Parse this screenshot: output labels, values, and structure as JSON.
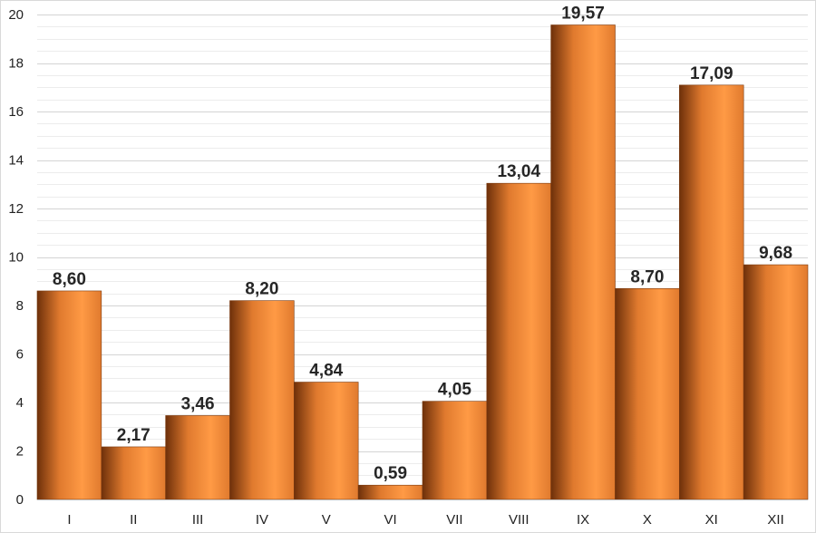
{
  "chart_data": {
    "type": "bar",
    "categories": [
      "I",
      "II",
      "III",
      "IV",
      "V",
      "VI",
      "VII",
      "VIII",
      "IX",
      "X",
      "XI",
      "XII"
    ],
    "values": [
      8.6,
      2.17,
      3.46,
      8.2,
      4.84,
      0.59,
      4.05,
      13.04,
      19.57,
      8.7,
      17.09,
      9.68
    ],
    "value_labels": [
      "8,60",
      "2,17",
      "3,46",
      "8,20",
      "4,84",
      "0,59",
      "4,05",
      "13,04",
      "19,57",
      "8,70",
      "17,09",
      "9,68"
    ],
    "yticks": [
      "0",
      "2",
      "4",
      "6",
      "8",
      "10",
      "12",
      "14",
      "16",
      "18",
      "20"
    ],
    "ylim": [
      0,
      20
    ],
    "major_step": 2,
    "minor_step": 0.5,
    "grid": true,
    "legend": "none",
    "colors": {
      "bar_dark": "#6e300a",
      "bar_mid": "#e07a2e",
      "bar_light": "#ff9a45"
    }
  }
}
